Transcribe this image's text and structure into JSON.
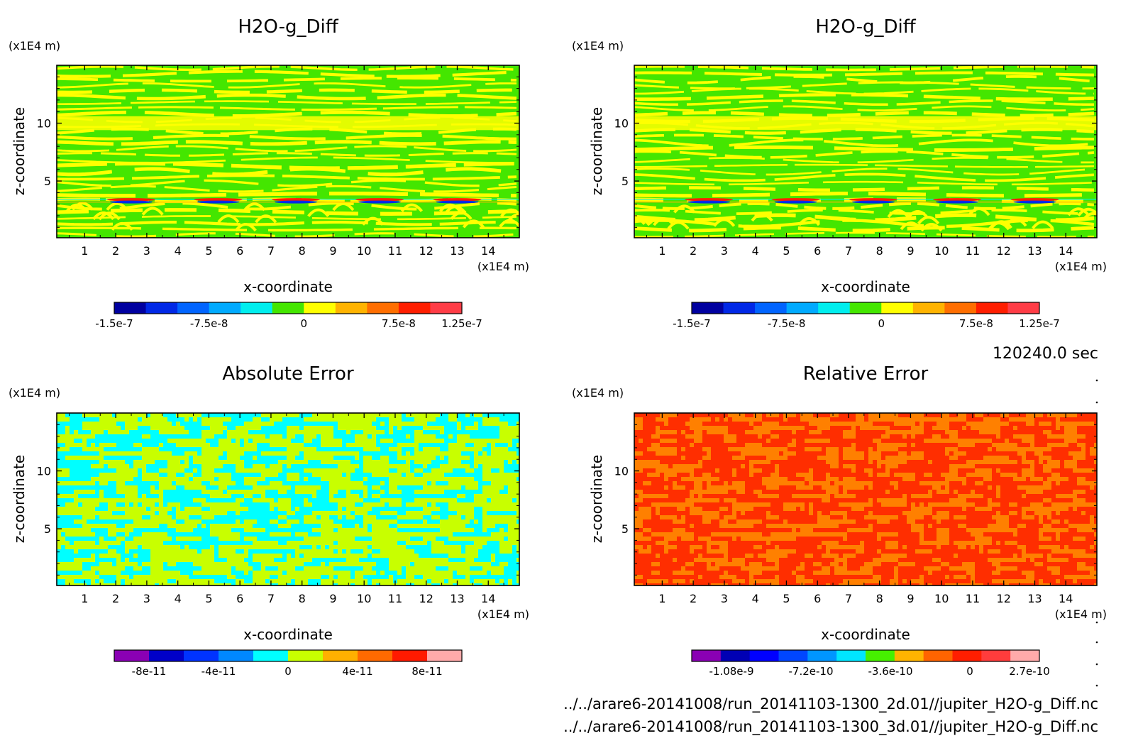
{
  "time_label": "120240.0 sec",
  "files": [
    "../../arare6-20141008/run_20141103-1300_2d.01//jupiter_H2O-g_Diff.nc",
    "../../arare6-20141008/run_20141103-1300_3d.01//jupiter_H2O-g_Diff.nc"
  ],
  "chart_data": [
    {
      "type": "heatmap",
      "title": "H2O-g_Diff",
      "xlabel": "x-coordinate",
      "ylabel": "z-coordinate",
      "x_unit": "(x1E4 m)",
      "y_unit": "(x1E4 m)",
      "xlim": [
        0.1,
        15.0
      ],
      "ylim": [
        0.1,
        15.0
      ],
      "xticks": [
        1,
        2,
        3,
        4,
        5,
        6,
        7,
        8,
        9,
        10,
        11,
        12,
        13,
        14
      ],
      "yticks": [
        5,
        10
      ],
      "colorbar": {
        "colors": [
          "#0000a0",
          "#0028e6",
          "#0064ff",
          "#00aaff",
          "#00eeee",
          "#44e600",
          "#ffff00",
          "#ffb300",
          "#ff6e00",
          "#ff1e00",
          "#ff3c46"
        ],
        "tick_labels": [
          "-1.5e-7",
          "-7.5e-8",
          "0",
          "7.5e-8",
          "1.25e-7"
        ],
        "tick_values": [
          -1.5e-07,
          -7.5e-08,
          0,
          7.5e-08,
          1.25e-07
        ],
        "range": [
          -1.5e-07,
          1.25e-07
        ]
      },
      "pattern": "bands",
      "palette": [
        "#44e600",
        "#ffff00"
      ]
    },
    {
      "type": "heatmap",
      "title": "H2O-g_Diff",
      "xlabel": "x-coordinate",
      "ylabel": "z-coordinate",
      "x_unit": "(x1E4 m)",
      "y_unit": "(x1E4 m)",
      "xlim": [
        0.1,
        15.0
      ],
      "ylim": [
        0.1,
        15.0
      ],
      "xticks": [
        1,
        2,
        3,
        4,
        5,
        6,
        7,
        8,
        9,
        10,
        11,
        12,
        13,
        14
      ],
      "yticks": [
        5,
        10
      ],
      "colorbar": {
        "colors": [
          "#0000a0",
          "#0028e6",
          "#0064ff",
          "#00aaff",
          "#00eeee",
          "#44e600",
          "#ffff00",
          "#ffb300",
          "#ff6e00",
          "#ff1e00",
          "#ff3c46"
        ],
        "tick_labels": [
          "-1.5e-7",
          "-7.5e-8",
          "0",
          "7.5e-8",
          "1.25e-7"
        ],
        "tick_values": [
          -1.5e-07,
          -7.5e-08,
          0,
          7.5e-08,
          1.25e-07
        ],
        "range": [
          -1.5e-07,
          1.25e-07
        ]
      },
      "pattern": "bands",
      "palette": [
        "#44e600",
        "#ffff00"
      ]
    },
    {
      "type": "heatmap",
      "title": "Absolute Error",
      "xlabel": "x-coordinate",
      "ylabel": "z-coordinate",
      "x_unit": "(x1E4 m)",
      "y_unit": "(x1E4 m)",
      "xlim": [
        0.1,
        15.0
      ],
      "ylim": [
        0.1,
        15.0
      ],
      "xticks": [
        1,
        2,
        3,
        4,
        5,
        6,
        7,
        8,
        9,
        10,
        11,
        12,
        13,
        14
      ],
      "yticks": [
        5,
        10
      ],
      "colorbar": {
        "colors": [
          "#8a00b4",
          "#0000c8",
          "#0033ff",
          "#0088ff",
          "#00ffff",
          "#c8ff00",
          "#ffb000",
          "#ff6a00",
          "#ff1a00",
          "#ffaaaa"
        ],
        "tick_labels": [
          "-8e-11",
          "-4e-11",
          "0",
          "4e-11",
          "8e-11"
        ],
        "tick_values": [
          -8e-11,
          -4e-11,
          0,
          4e-11,
          8e-11
        ],
        "range": [
          -1e-10,
          1e-10
        ]
      },
      "pattern": "noise",
      "palette": [
        "#00ffff",
        "#c8ff00"
      ]
    },
    {
      "type": "heatmap",
      "title": "Relative Error",
      "xlabel": "x-coordinate",
      "ylabel": "z-coordinate",
      "x_unit": "(x1E4 m)",
      "y_unit": "(x1E4 m)",
      "xlim": [
        0.1,
        15.0
      ],
      "ylim": [
        0.1,
        15.0
      ],
      "xticks": [
        1,
        2,
        3,
        4,
        5,
        6,
        7,
        8,
        9,
        10,
        11,
        12,
        13,
        14
      ],
      "yticks": [
        5,
        10
      ],
      "colorbar": {
        "colors": [
          "#8a00b4",
          "#0000b4",
          "#0000ff",
          "#0046ff",
          "#0096ff",
          "#00e6ff",
          "#46f000",
          "#ffb400",
          "#ff6400",
          "#ff1e00",
          "#ff3c3c",
          "#ffaaaa"
        ],
        "tick_labels": [
          "-1.08e-9",
          "-7.2e-10",
          "-3.6e-10",
          "0",
          "2.7e-10"
        ],
        "tick_values": [
          -1.08e-09,
          -7.2e-10,
          -3.6e-10,
          0,
          2.7e-10
        ],
        "range": [
          -1.26e-09,
          3.15e-10
        ]
      },
      "pattern": "noise",
      "palette": [
        "#ff8000",
        "#ff2e00"
      ]
    }
  ]
}
